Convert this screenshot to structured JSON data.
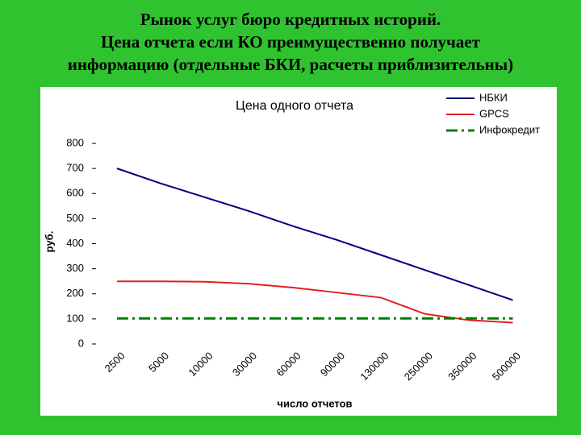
{
  "slide_title": [
    "Рынок услуг бюро кредитных историй.",
    "Цена отчета если КО преимущественно получает",
    "информацию (отдельные БКИ, расчеты приблизительны)"
  ],
  "chart_data": {
    "type": "line",
    "title": "Цена одного отчета",
    "x_label": "число отчетов",
    "y_label": "руб.",
    "categories": [
      "2500",
      "5000",
      "10000",
      "30000",
      "60000",
      "90000",
      "130000",
      "250000",
      "350000",
      "500000"
    ],
    "series": [
      {
        "name": "НБКИ",
        "color": "#000080",
        "dash": "solid",
        "values": [
          700,
          640,
          585,
          530,
          470,
          415,
          355,
          295,
          235,
          175
        ]
      },
      {
        "name": "GPCS",
        "color": "#e02020",
        "dash": "solid",
        "values": [
          250,
          250,
          248,
          240,
          225,
          205,
          185,
          120,
          95,
          85
        ]
      },
      {
        "name": "Инфокредит",
        "color": "#008000",
        "dash": "dashdot",
        "values": [
          102,
          102,
          102,
          102,
          102,
          102,
          102,
          102,
          102,
          102
        ]
      }
    ],
    "ylim": [
      0,
      800
    ],
    "yticks": [
      0,
      100,
      200,
      300,
      400,
      500,
      600,
      700,
      800
    ],
    "grid": false,
    "legend": "top-right"
  }
}
